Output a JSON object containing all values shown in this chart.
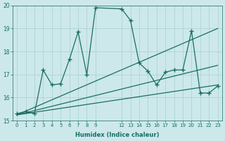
{
  "xlabel": "Humidex (Indice chaleur)",
  "ylabel": "",
  "xlim": [
    -0.5,
    23.5
  ],
  "ylim": [
    15,
    20
  ],
  "yticks": [
    15,
    16,
    17,
    18,
    19,
    20
  ],
  "xticks": [
    0,
    1,
    2,
    3,
    4,
    5,
    6,
    7,
    8,
    9,
    12,
    13,
    14,
    15,
    16,
    17,
    18,
    19,
    20,
    21,
    22,
    23
  ],
  "xtick_labels": [
    "0",
    "1",
    "2",
    "3",
    "4",
    "5",
    "6",
    "7",
    "8",
    "9",
    "12",
    "13",
    "14",
    "15",
    "16",
    "17",
    "18",
    "19",
    "20",
    "21",
    "22",
    "23"
  ],
  "background_color": "#cce8ea",
  "grid_color": "#aacfd2",
  "line_color": "#1a6e64",
  "lines": [
    {
      "x": [
        0,
        1,
        2,
        3,
        4,
        5,
        6,
        7,
        8,
        9,
        12,
        13,
        14,
        15,
        16,
        17,
        18,
        19,
        20,
        21,
        22,
        23
      ],
      "y": [
        15.3,
        15.4,
        15.3,
        17.2,
        16.55,
        16.6,
        17.65,
        18.85,
        17.0,
        19.9,
        19.85,
        19.35,
        17.5,
        17.15,
        16.55,
        17.1,
        17.2,
        17.2,
        18.9,
        16.2,
        16.2,
        16.5
      ],
      "marker": "+",
      "markersize": 4,
      "linewidth": 0.9,
      "linestyle": "-"
    },
    {
      "x": [
        0,
        23
      ],
      "y": [
        15.25,
        19.0
      ],
      "marker": null,
      "markersize": 0,
      "linewidth": 0.9,
      "linestyle": "-"
    },
    {
      "x": [
        0,
        23
      ],
      "y": [
        15.25,
        17.4
      ],
      "marker": null,
      "markersize": 0,
      "linewidth": 0.9,
      "linestyle": "-"
    },
    {
      "x": [
        0,
        23
      ],
      "y": [
        15.25,
        16.55
      ],
      "marker": null,
      "markersize": 0,
      "linewidth": 0.9,
      "linestyle": "-"
    }
  ]
}
